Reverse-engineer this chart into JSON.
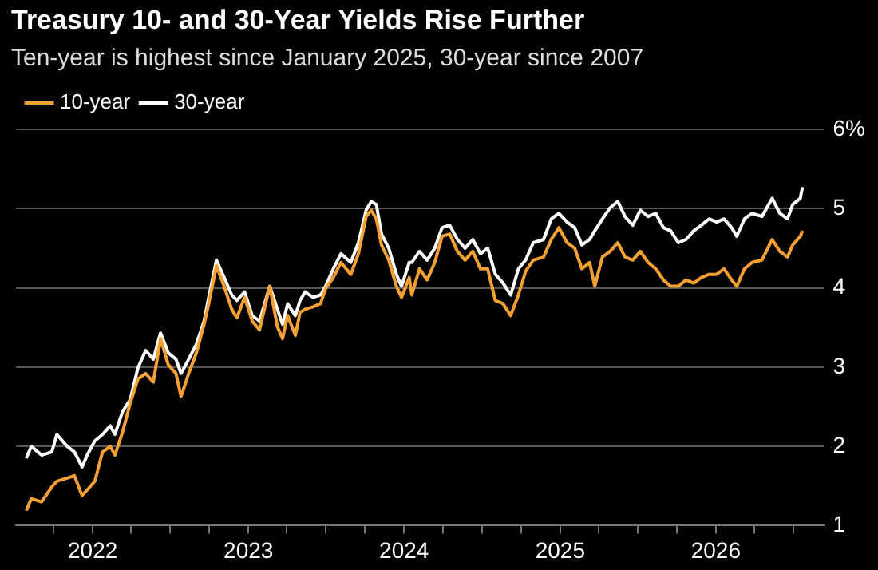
{
  "chart_data": {
    "type": "line",
    "title": "Treasury 10- and 30-Year Yields Rise Further",
    "subtitle": "Ten-year is highest since January 2025, 30-year since 2007",
    "x": [
      "2021-07-29",
      "2021-08-10",
      "2021-09-03",
      "2021-09-27",
      "2021-10-09",
      "2021-11-02",
      "2021-11-19",
      "2021-12-07",
      "2021-12-19",
      "2022-01-06",
      "2022-01-24",
      "2022-02-11",
      "2022-02-22",
      "2022-03-12",
      "2022-03-30",
      "2022-04-17",
      "2022-05-05",
      "2022-05-23",
      "2022-06-09",
      "2022-06-27",
      "2022-07-15",
      "2022-07-27",
      "2022-08-14",
      "2022-09-01",
      "2022-09-19",
      "2022-09-30",
      "2022-10-18",
      "2022-11-05",
      "2022-11-23",
      "2022-12-05",
      "2022-12-23",
      "2023-01-10",
      "2023-01-27",
      "2023-02-20",
      "2023-03-10",
      "2023-03-22",
      "2023-04-03",
      "2023-04-21",
      "2023-05-02",
      "2023-05-14",
      "2023-06-01",
      "2023-06-19",
      "2023-07-01",
      "2023-07-19",
      "2023-08-06",
      "2023-08-29",
      "2023-09-16",
      "2023-10-04",
      "2023-10-16",
      "2023-10-28",
      "2023-11-09",
      "2023-11-26",
      "2023-12-14",
      "2023-12-26",
      "2024-01-13",
      "2024-01-19",
      "2024-02-06",
      "2024-02-24",
      "2024-03-13",
      "2024-03-30",
      "2024-04-17",
      "2024-05-05",
      "2024-05-23",
      "2024-06-10",
      "2024-06-28",
      "2024-07-15",
      "2024-08-02",
      "2024-08-20",
      "2024-09-07",
      "2024-09-25",
      "2024-10-12",
      "2024-10-30",
      "2024-11-23",
      "2024-12-11",
      "2024-12-29",
      "2025-01-17",
      "2025-02-04",
      "2025-02-21",
      "2025-03-11",
      "2025-03-23",
      "2025-04-10",
      "2025-04-28",
      "2025-05-16",
      "2025-06-02",
      "2025-06-20",
      "2025-07-08",
      "2025-07-26",
      "2025-08-13",
      "2025-08-31",
      "2025-09-17",
      "2025-10-05",
      "2025-10-23",
      "2025-11-10",
      "2025-11-28",
      "2025-12-16",
      "2026-01-03",
      "2026-01-20",
      "2026-02-07",
      "2026-02-19",
      "2026-03-09",
      "2026-03-27",
      "2026-04-19",
      "2026-05-13",
      "2026-05-31",
      "2026-06-18",
      "2026-06-30",
      "2026-07-18",
      "2026-07-23"
    ],
    "series": [
      {
        "name": "10-year",
        "color": "#f7a032",
        "values": [
          1.19,
          1.34,
          1.3,
          1.49,
          1.56,
          1.6,
          1.63,
          1.38,
          1.45,
          1.56,
          1.93,
          2.0,
          1.89,
          2.18,
          2.55,
          2.85,
          2.92,
          2.81,
          3.36,
          3.03,
          2.92,
          2.63,
          2.92,
          3.18,
          3.54,
          3.8,
          4.28,
          4.02,
          3.73,
          3.62,
          3.88,
          3.58,
          3.47,
          4.02,
          3.51,
          3.36,
          3.65,
          3.4,
          3.69,
          3.73,
          3.76,
          3.8,
          3.99,
          4.13,
          4.32,
          4.17,
          4.43,
          4.9,
          4.98,
          4.87,
          4.54,
          4.35,
          4.02,
          3.88,
          4.13,
          3.91,
          4.24,
          4.1,
          4.32,
          4.65,
          4.68,
          4.46,
          4.35,
          4.46,
          4.24,
          4.24,
          3.84,
          3.8,
          3.65,
          3.91,
          4.21,
          4.35,
          4.39,
          4.61,
          4.76,
          4.57,
          4.5,
          4.24,
          4.32,
          4.02,
          4.39,
          4.46,
          4.57,
          4.39,
          4.35,
          4.46,
          4.32,
          4.24,
          4.1,
          4.02,
          4.02,
          4.1,
          4.06,
          4.13,
          4.17,
          4.17,
          4.24,
          4.1,
          4.02,
          4.24,
          4.32,
          4.35,
          4.61,
          4.46,
          4.39,
          4.54,
          4.65,
          4.72
        ]
      },
      {
        "name": "30-year",
        "color": "#ffffff",
        "values": [
          1.85,
          2.0,
          1.89,
          1.93,
          2.15,
          2.0,
          1.93,
          1.74,
          1.89,
          2.07,
          2.15,
          2.26,
          2.15,
          2.44,
          2.59,
          2.99,
          3.21,
          3.1,
          3.43,
          3.18,
          3.1,
          2.92,
          3.1,
          3.29,
          3.58,
          3.88,
          4.35,
          4.13,
          3.91,
          3.84,
          3.95,
          3.65,
          3.58,
          4.02,
          3.73,
          3.54,
          3.8,
          3.65,
          3.84,
          3.95,
          3.88,
          3.91,
          4.02,
          4.24,
          4.43,
          4.32,
          4.57,
          4.98,
          5.09,
          5.05,
          4.68,
          4.5,
          4.17,
          4.02,
          4.32,
          4.32,
          4.46,
          4.35,
          4.5,
          4.76,
          4.79,
          4.61,
          4.5,
          4.61,
          4.43,
          4.5,
          4.17,
          4.06,
          3.91,
          4.24,
          4.35,
          4.57,
          4.61,
          4.87,
          4.94,
          4.83,
          4.76,
          4.54,
          4.61,
          4.72,
          4.87,
          5.01,
          5.09,
          4.9,
          4.79,
          4.98,
          4.9,
          4.94,
          4.76,
          4.72,
          4.57,
          4.61,
          4.72,
          4.79,
          4.87,
          4.83,
          4.87,
          4.76,
          4.65,
          4.87,
          4.94,
          4.9,
          5.13,
          4.94,
          4.87,
          5.05,
          5.13,
          5.27
        ]
      }
    ],
    "xlim": [
      "2021-07-05",
      "2026-09-10"
    ],
    "xticks": [
      {
        "value": "2021-10-01",
        "label": null
      },
      {
        "value": "2022-01-01",
        "label": "2022"
      },
      {
        "value": "2022-04-01",
        "label": null
      },
      {
        "value": "2022-07-01",
        "label": null
      },
      {
        "value": "2022-10-01",
        "label": null
      },
      {
        "value": "2023-01-01",
        "label": "2023"
      },
      {
        "value": "2023-04-01",
        "label": null
      },
      {
        "value": "2023-07-01",
        "label": null
      },
      {
        "value": "2023-10-01",
        "label": null
      },
      {
        "value": "2024-01-01",
        "label": "2024"
      },
      {
        "value": "2024-04-01",
        "label": null
      },
      {
        "value": "2024-07-01",
        "label": null
      },
      {
        "value": "2024-10-01",
        "label": null
      },
      {
        "value": "2025-01-01",
        "label": "2025"
      },
      {
        "value": "2025-04-01",
        "label": null
      },
      {
        "value": "2025-07-01",
        "label": null
      },
      {
        "value": "2025-10-01",
        "label": null
      },
      {
        "value": "2026-01-01",
        "label": "2026"
      },
      {
        "value": "2026-04-01",
        "label": null
      },
      {
        "value": "2026-07-01",
        "label": null
      }
    ],
    "ylim": [
      1,
      6
    ],
    "yticks": [
      1,
      2,
      3,
      4,
      5,
      {
        "value": 6,
        "label": "6%"
      }
    ],
    "grid": "y",
    "legend": "top left"
  }
}
